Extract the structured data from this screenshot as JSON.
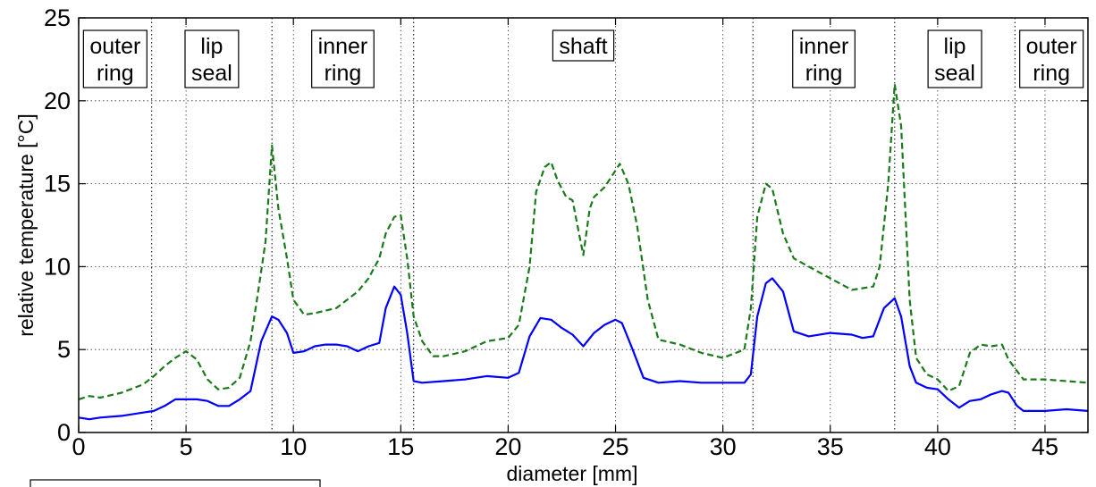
{
  "chart_data": {
    "type": "line",
    "title": "",
    "xlabel": "diameter [mm]",
    "ylabel": "relative temperature [°C]",
    "xlim": [
      0,
      47
    ],
    "ylim": [
      0,
      25
    ],
    "xticks": [
      0,
      5,
      10,
      15,
      20,
      25,
      30,
      35,
      40,
      45
    ],
    "yticks": [
      0,
      5,
      10,
      15,
      20,
      25
    ],
    "grid": true,
    "dividers": [
      3.4,
      9.0,
      15.6,
      31.4,
      38.0,
      43.6
    ],
    "regions": [
      {
        "lines": [
          "outer",
          "ring"
        ],
        "center": 1.7
      },
      {
        "lines": [
          "lip",
          "seal"
        ],
        "center": 6.2
      },
      {
        "lines": [
          "inner",
          "ring"
        ],
        "center": 12.3
      },
      {
        "lines": [
          "shaft"
        ],
        "center": 23.5
      },
      {
        "lines": [
          "inner",
          "ring"
        ],
        "center": 34.7
      },
      {
        "lines": [
          "lip",
          "seal"
        ],
        "center": 40.8
      },
      {
        "lines": [
          "outer",
          "ring"
        ],
        "center": 45.3
      }
    ],
    "series": [
      {
        "color": "#0000ff",
        "style": "solid",
        "x": [
          0,
          0.5,
          1,
          2,
          3,
          3.5,
          4,
          4.5,
          5,
          5.5,
          6,
          6.5,
          7,
          7.5,
          8,
          8.5,
          9,
          9.3,
          9.7,
          10,
          10.5,
          11,
          11.5,
          12,
          12.5,
          13,
          13.5,
          14,
          14.3,
          14.7,
          15,
          15.3,
          15.6,
          16,
          17,
          18,
          19,
          20,
          20.5,
          21,
          21.5,
          22,
          22.5,
          23,
          23.5,
          24,
          24.5,
          25,
          25.3,
          25.8,
          26.3,
          27,
          28,
          29,
          30,
          31,
          31.3,
          31.6,
          32,
          32.3,
          32.8,
          33.3,
          34,
          35,
          36,
          36.5,
          37,
          37.5,
          38,
          38.3,
          38.7,
          39,
          39.5,
          40,
          40.5,
          41,
          41.5,
          42,
          42.5,
          43,
          43.3,
          43.7,
          44,
          45,
          46,
          47
        ],
        "y": [
          0.9,
          0.8,
          0.9,
          1.0,
          1.2,
          1.3,
          1.6,
          2.0,
          2.0,
          2.0,
          1.9,
          1.6,
          1.6,
          2.0,
          2.5,
          5.5,
          7.0,
          6.8,
          6.0,
          4.8,
          4.9,
          5.2,
          5.3,
          5.3,
          5.2,
          4.9,
          5.2,
          5.4,
          7.5,
          8.8,
          8.3,
          6.0,
          3.1,
          3.0,
          3.1,
          3.2,
          3.4,
          3.3,
          3.6,
          5.8,
          6.9,
          6.8,
          6.3,
          5.9,
          5.2,
          6.0,
          6.5,
          6.8,
          6.6,
          5.0,
          3.3,
          3.0,
          3.1,
          3.0,
          3.0,
          3.0,
          3.5,
          7.0,
          9.0,
          9.3,
          8.5,
          6.1,
          5.8,
          6.0,
          5.9,
          5.7,
          5.8,
          7.5,
          8.1,
          7.0,
          4.0,
          3.0,
          2.7,
          2.6,
          2.0,
          1.5,
          1.9,
          2.0,
          2.3,
          2.5,
          2.4,
          1.6,
          1.3,
          1.3,
          1.4,
          1.3
        ]
      },
      {
        "color": "#1a7a1a",
        "style": "dashed",
        "x": [
          0,
          0.5,
          1,
          2,
          3,
          3.5,
          4,
          4.5,
          5,
          5.5,
          6,
          6.5,
          7,
          7.5,
          8,
          8.3,
          8.7,
          9,
          9.3,
          9.7,
          10,
          10.5,
          11,
          12,
          12.5,
          13,
          13.5,
          14,
          14.3,
          14.7,
          15,
          15.3,
          15.6,
          16,
          16.5,
          17,
          18,
          19,
          20,
          20.5,
          21,
          21.3,
          21.7,
          22,
          22.3,
          22.7,
          23,
          23.3,
          23.5,
          23.8,
          24,
          24.5,
          25,
          25.2,
          25.6,
          26,
          26.5,
          27,
          28,
          29,
          30,
          31,
          31.3,
          31.6,
          32,
          32.3,
          32.8,
          33.3,
          34,
          35,
          36,
          37,
          37.3,
          37.7,
          38,
          38.3,
          38.7,
          39,
          39.5,
          40,
          40.5,
          41,
          41.5,
          42,
          42.5,
          43,
          43.3,
          43.7,
          44,
          45,
          46,
          47
        ],
        "y": [
          2.0,
          2.2,
          2.1,
          2.4,
          2.9,
          3.4,
          4.0,
          4.5,
          4.9,
          4.4,
          3.2,
          2.6,
          2.7,
          3.3,
          5.5,
          8.0,
          11.5,
          17.3,
          13.5,
          10.5,
          8.0,
          7.1,
          7.2,
          7.5,
          8.0,
          8.5,
          9.3,
          10.5,
          12.0,
          13.0,
          13.1,
          10.5,
          7.0,
          5.5,
          4.6,
          4.6,
          4.9,
          5.5,
          5.7,
          6.5,
          10.0,
          14.5,
          16.0,
          16.3,
          15.2,
          14.2,
          14.0,
          12.0,
          10.7,
          13.5,
          14.2,
          14.8,
          15.8,
          16.2,
          15.0,
          12.5,
          8.0,
          5.6,
          5.3,
          4.8,
          4.5,
          5.0,
          7.5,
          13.0,
          15.0,
          14.7,
          12.0,
          10.5,
          10.0,
          9.3,
          8.6,
          8.8,
          10.0,
          15.0,
          21.0,
          18.5,
          8.0,
          4.5,
          3.5,
          3.2,
          2.5,
          2.8,
          4.8,
          5.3,
          5.2,
          5.3,
          4.4,
          3.7,
          3.2,
          3.2,
          3.1,
          3.0
        ]
      }
    ]
  }
}
